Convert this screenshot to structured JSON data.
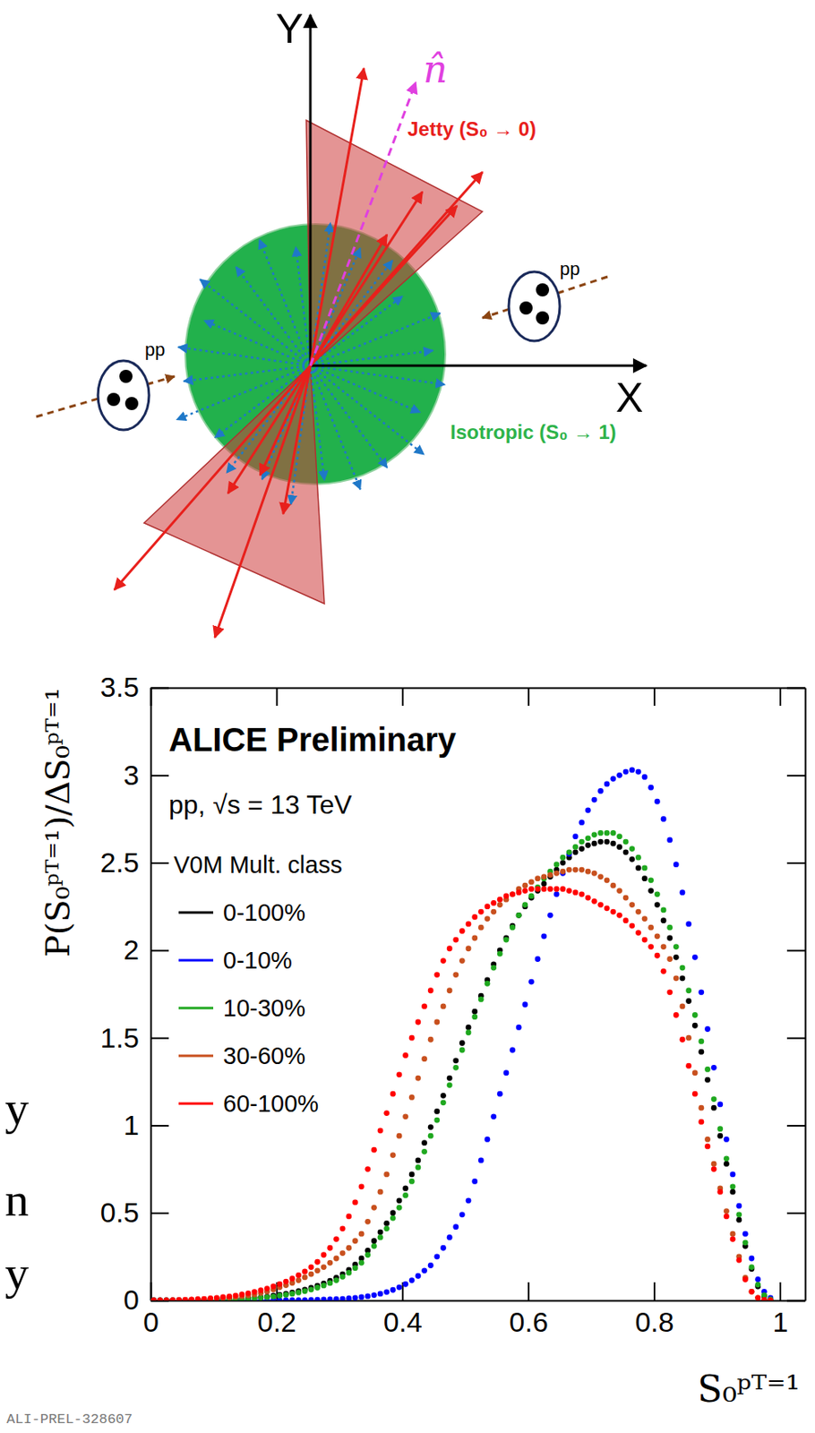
{
  "diagram": {
    "y_axis_label": "Y",
    "x_axis_label": "X",
    "direction_label": "n̂",
    "jetty_label": "Jetty (S₀ → 0)",
    "isotropic_label": "Isotropic (S₀ → 1)",
    "beam_labels": [
      "pp",
      "pp"
    ]
  },
  "margin_text": [
    "y",
    "n",
    "y"
  ],
  "chart_data": {
    "type": "scatter",
    "title": "ALICE Preliminary",
    "subtitle": "pp, √s = 13 TeV",
    "x_label": "S₀ᵖᵀ⁼¹",
    "y_label": "P(S₀ᵖᵀ⁼¹)/ΔS₀ᵖᵀ⁼¹",
    "xlim": [
      0,
      1.04
    ],
    "ylim": [
      0,
      3.5
    ],
    "xticks": [
      0,
      0.2,
      0.4,
      0.6,
      0.8,
      1
    ],
    "yticks": [
      0,
      0.5,
      1,
      1.5,
      2,
      2.5,
      3,
      3.5
    ],
    "grid": false,
    "legend": "upper left",
    "legend_title": "V0M Mult. class",
    "annotations": [
      "ALI-PREL-328607"
    ],
    "x": [
      0.005,
      0.015,
      0.025,
      0.035,
      0.045,
      0.055,
      0.065,
      0.075,
      0.085,
      0.095,
      0.105,
      0.115,
      0.125,
      0.135,
      0.145,
      0.155,
      0.165,
      0.175,
      0.185,
      0.195,
      0.205,
      0.215,
      0.225,
      0.235,
      0.245,
      0.255,
      0.265,
      0.275,
      0.285,
      0.295,
      0.305,
      0.315,
      0.325,
      0.335,
      0.345,
      0.355,
      0.365,
      0.375,
      0.385,
      0.395,
      0.405,
      0.415,
      0.425,
      0.435,
      0.445,
      0.455,
      0.465,
      0.475,
      0.485,
      0.495,
      0.505,
      0.515,
      0.525,
      0.535,
      0.545,
      0.555,
      0.565,
      0.575,
      0.585,
      0.595,
      0.605,
      0.615,
      0.625,
      0.635,
      0.645,
      0.655,
      0.665,
      0.675,
      0.685,
      0.695,
      0.705,
      0.715,
      0.725,
      0.735,
      0.745,
      0.755,
      0.765,
      0.775,
      0.785,
      0.795,
      0.805,
      0.815,
      0.825,
      0.835,
      0.845,
      0.855,
      0.865,
      0.875,
      0.885,
      0.895,
      0.905,
      0.915,
      0.925,
      0.935,
      0.945,
      0.955,
      0.965,
      0.975,
      0.985
    ],
    "series": [
      {
        "name": "0-100%",
        "color": "#000000",
        "marker": "circle",
        "values": [
          0,
          0,
          0,
          0,
          0.001,
          0.001,
          0.001,
          0.002,
          0.002,
          0.003,
          0.004,
          0.005,
          0.006,
          0.008,
          0.01,
          0.012,
          0.015,
          0.018,
          0.022,
          0.027,
          0.032,
          0.038,
          0.045,
          0.053,
          0.062,
          0.072,
          0.084,
          0.097,
          0.112,
          0.13,
          0.15,
          0.175,
          0.205,
          0.24,
          0.285,
          0.34,
          0.39,
          0.44,
          0.5,
          0.57,
          0.64,
          0.72,
          0.8,
          0.9,
          0.99,
          1.08,
          1.17,
          1.27,
          1.37,
          1.47,
          1.56,
          1.65,
          1.74,
          1.83,
          1.92,
          2.0,
          2.07,
          2.14,
          2.2,
          2.25,
          2.3,
          2.34,
          2.38,
          2.42,
          2.46,
          2.5,
          2.53,
          2.56,
          2.58,
          2.6,
          2.61,
          2.62,
          2.62,
          2.61,
          2.59,
          2.56,
          2.52,
          2.47,
          2.41,
          2.34,
          2.26,
          2.17,
          2.07,
          1.96,
          1.84,
          1.71,
          1.57,
          1.42,
          1.26,
          1.1,
          0.94,
          0.78,
          0.62,
          0.46,
          0.31,
          0.18,
          0.08,
          0.025,
          0.005
        ]
      },
      {
        "name": "0-10%",
        "color": "#0000ff",
        "marker": "circle",
        "values": [
          0,
          0,
          0,
          0,
          0,
          0,
          0,
          0,
          0,
          0,
          0,
          0,
          0,
          0,
          0,
          0,
          0.001,
          0.001,
          0.001,
          0.001,
          0.001,
          0.002,
          0.002,
          0.002,
          0.002,
          0.003,
          0.004,
          0.005,
          0.006,
          0.007,
          0.009,
          0.012,
          0.015,
          0.019,
          0.024,
          0.03,
          0.038,
          0.048,
          0.06,
          0.075,
          0.093,
          0.115,
          0.14,
          0.17,
          0.2,
          0.25,
          0.3,
          0.36,
          0.42,
          0.49,
          0.57,
          0.68,
          0.8,
          0.92,
          1.05,
          1.18,
          1.3,
          1.43,
          1.56,
          1.69,
          1.82,
          1.95,
          2.08,
          2.2,
          2.32,
          2.44,
          2.55,
          2.65,
          2.73,
          2.8,
          2.86,
          2.91,
          2.95,
          2.98,
          3.0,
          3.02,
          3.03,
          3.02,
          2.99,
          2.93,
          2.85,
          2.75,
          2.63,
          2.49,
          2.33,
          2.15,
          1.96,
          1.76,
          1.55,
          1.33,
          1.12,
          0.92,
          0.72,
          0.54,
          0.38,
          0.24,
          0.12,
          0.05,
          0.015
        ]
      },
      {
        "name": "10-30%",
        "color": "#1fa81f",
        "marker": "circle",
        "values": [
          0,
          0,
          0,
          0,
          0,
          0.001,
          0.001,
          0.001,
          0.002,
          0.002,
          0.003,
          0.004,
          0.005,
          0.006,
          0.008,
          0.01,
          0.012,
          0.015,
          0.018,
          0.022,
          0.027,
          0.032,
          0.038,
          0.045,
          0.053,
          0.062,
          0.073,
          0.085,
          0.099,
          0.115,
          0.135,
          0.158,
          0.185,
          0.215,
          0.26,
          0.31,
          0.36,
          0.41,
          0.47,
          0.53,
          0.6,
          0.68,
          0.76,
          0.85,
          0.94,
          1.03,
          1.13,
          1.23,
          1.33,
          1.43,
          1.53,
          1.62,
          1.72,
          1.81,
          1.9,
          1.98,
          2.06,
          2.13,
          2.2,
          2.26,
          2.31,
          2.36,
          2.41,
          2.45,
          2.49,
          2.53,
          2.56,
          2.59,
          2.62,
          2.64,
          2.66,
          2.67,
          2.67,
          2.67,
          2.65,
          2.62,
          2.58,
          2.53,
          2.47,
          2.4,
          2.32,
          2.23,
          2.13,
          2.02,
          1.9,
          1.77,
          1.63,
          1.48,
          1.32,
          1.15,
          0.98,
          0.81,
          0.65,
          0.49,
          0.33,
          0.19,
          0.09,
          0.03,
          0.006
        ]
      },
      {
        "name": "30-60%",
        "color": "#c8501e",
        "marker": "circle",
        "values": [
          0,
          0,
          0,
          0.001,
          0.001,
          0.003,
          0.004,
          0.005,
          0.007,
          0.009,
          0.011,
          0.014,
          0.017,
          0.02,
          0.024,
          0.028,
          0.034,
          0.042,
          0.051,
          0.062,
          0.075,
          0.087,
          0.1,
          0.115,
          0.132,
          0.15,
          0.17,
          0.19,
          0.215,
          0.24,
          0.27,
          0.3,
          0.34,
          0.38,
          0.45,
          0.53,
          0.62,
          0.72,
          0.83,
          0.94,
          1.05,
          1.16,
          1.27,
          1.38,
          1.49,
          1.59,
          1.68,
          1.77,
          1.86,
          1.94,
          2.01,
          2.07,
          2.13,
          2.18,
          2.22,
          2.26,
          2.29,
          2.32,
          2.35,
          2.37,
          2.39,
          2.41,
          2.42,
          2.43,
          2.44,
          2.45,
          2.46,
          2.46,
          2.46,
          2.45,
          2.44,
          2.42,
          2.4,
          2.37,
          2.34,
          2.3,
          2.26,
          2.22,
          2.18,
          2.13,
          2.08,
          2.02,
          1.95,
          1.84,
          1.68,
          1.5,
          1.3,
          1.1,
          0.92,
          0.78,
          0.64,
          0.51,
          0.38,
          0.25,
          0.13,
          0.05,
          0.015,
          0.003,
          0
        ]
      },
      {
        "name": "60-100%",
        "color": "#ff0000",
        "marker": "circle",
        "values": [
          0,
          0.001,
          0.001,
          0.002,
          0.003,
          0.004,
          0.005,
          0.007,
          0.009,
          0.012,
          0.015,
          0.019,
          0.023,
          0.028,
          0.034,
          0.041,
          0.049,
          0.058,
          0.068,
          0.08,
          0.093,
          0.108,
          0.125,
          0.144,
          0.165,
          0.19,
          0.22,
          0.26,
          0.3,
          0.35,
          0.41,
          0.48,
          0.56,
          0.65,
          0.75,
          0.86,
          0.97,
          1.07,
          1.18,
          1.29,
          1.4,
          1.5,
          1.59,
          1.68,
          1.77,
          1.86,
          1.94,
          2.01,
          2.06,
          2.11,
          2.15,
          2.19,
          2.22,
          2.25,
          2.27,
          2.29,
          2.31,
          2.32,
          2.33,
          2.34,
          2.35,
          2.35,
          2.35,
          2.35,
          2.35,
          2.35,
          2.34,
          2.33,
          2.32,
          2.3,
          2.28,
          2.26,
          2.24,
          2.22,
          2.2,
          2.17,
          2.14,
          2.1,
          2.06,
          2.02,
          1.97,
          1.88,
          1.76,
          1.63,
          1.49,
          1.34,
          1.18,
          1.02,
          0.88,
          0.75,
          0.62,
          0.48,
          0.35,
          0.23,
          0.12,
          0.05,
          0.015,
          0.003,
          0
        ]
      }
    ]
  }
}
